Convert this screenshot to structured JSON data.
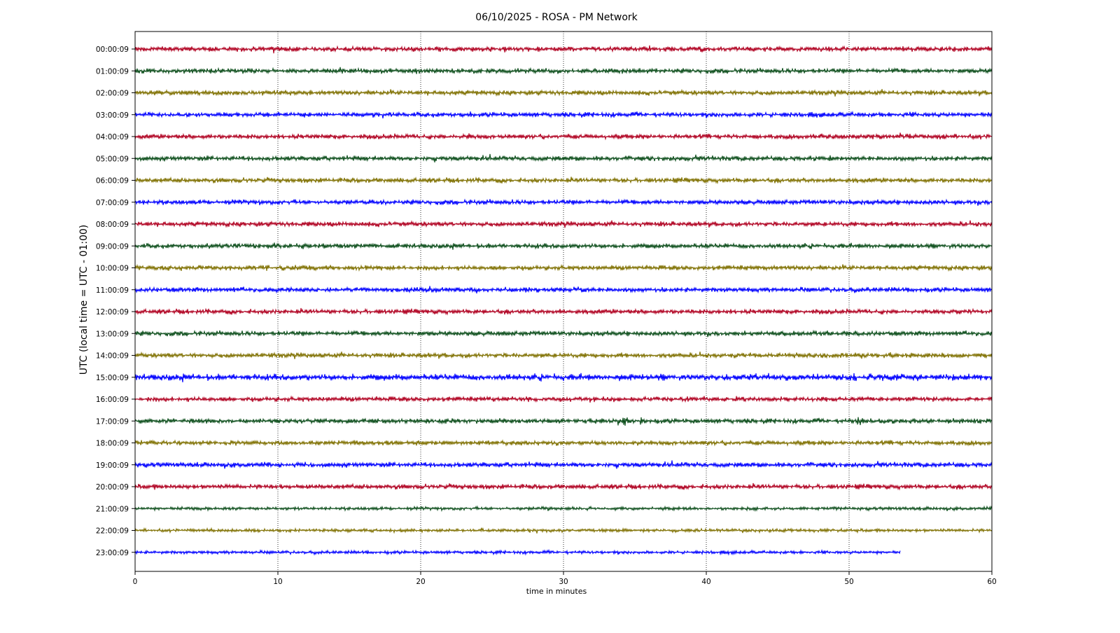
{
  "chart_data": {
    "type": "line",
    "title": "06/10/2025 - ROSA - PM Network",
    "xlabel": "time in minutes",
    "ylabel": "UTC (local time = UTC - 01:00)",
    "xlim": [
      0,
      60
    ],
    "x_ticks": [
      0,
      10,
      20,
      30,
      40,
      50,
      60
    ],
    "grid": "vertical dotted lines at x ticks",
    "colors": [
      "#b00020",
      "#0b4d1a",
      "#7f7000",
      "#0000ff"
    ],
    "series": [
      {
        "name": "00:00:09",
        "x_end": 60,
        "amplitude": 3,
        "events": []
      },
      {
        "name": "01:00:09",
        "x_end": 60,
        "amplitude": 3,
        "events": []
      },
      {
        "name": "02:00:09",
        "x_end": 60,
        "amplitude": 3,
        "events": []
      },
      {
        "name": "03:00:09",
        "x_end": 60,
        "amplitude": 3,
        "events": [
          {
            "x": 23.5,
            "amp": 6
          }
        ]
      },
      {
        "name": "04:00:09",
        "x_end": 60,
        "amplitude": 3,
        "events": [
          {
            "x": 23.4,
            "amp": 5
          }
        ]
      },
      {
        "name": "05:00:09",
        "x_end": 60,
        "amplitude": 3,
        "events": []
      },
      {
        "name": "06:00:09",
        "x_end": 60,
        "amplitude": 3,
        "events": []
      },
      {
        "name": "07:00:09",
        "x_end": 60,
        "amplitude": 3,
        "events": []
      },
      {
        "name": "08:00:09",
        "x_end": 60,
        "amplitude": 3,
        "events": []
      },
      {
        "name": "09:00:09",
        "x_end": 60,
        "amplitude": 3,
        "events": []
      },
      {
        "name": "10:00:09",
        "x_end": 60,
        "amplitude": 3,
        "events": [
          {
            "x": 43.8,
            "amp": 6
          }
        ]
      },
      {
        "name": "11:00:09",
        "x_end": 60,
        "amplitude": 3,
        "events": [
          {
            "x": 31.1,
            "amp": 6
          }
        ]
      },
      {
        "name": "12:00:09",
        "x_end": 60,
        "amplitude": 3,
        "events": []
      },
      {
        "name": "13:00:09",
        "x_end": 60,
        "amplitude": 3,
        "events": []
      },
      {
        "name": "14:00:09",
        "x_end": 60,
        "amplitude": 3,
        "events": []
      },
      {
        "name": "15:00:09",
        "x_end": 60,
        "amplitude": 4,
        "events": []
      },
      {
        "name": "16:00:09",
        "x_end": 60,
        "amplitude": 3,
        "events": []
      },
      {
        "name": "17:00:09",
        "x_end": 60,
        "amplitude": 3,
        "events": [
          {
            "x": 34.3,
            "amp": 9
          },
          {
            "x": 35.5,
            "amp": 8
          },
          {
            "x": 50.7,
            "amp": 11
          }
        ]
      },
      {
        "name": "18:00:09",
        "x_end": 60,
        "amplitude": 3,
        "events": []
      },
      {
        "name": "19:00:09",
        "x_end": 60,
        "amplitude": 3,
        "events": []
      },
      {
        "name": "20:00:09",
        "x_end": 60,
        "amplitude": 3,
        "events": []
      },
      {
        "name": "21:00:09",
        "x_end": 60,
        "amplitude": 2,
        "events": [
          {
            "x": 28.8,
            "amp": 5
          }
        ]
      },
      {
        "name": "22:00:09",
        "x_end": 60,
        "amplitude": 2,
        "events": []
      },
      {
        "name": "23:00:09",
        "x_end": 53.6,
        "amplitude": 2,
        "events": []
      }
    ]
  }
}
